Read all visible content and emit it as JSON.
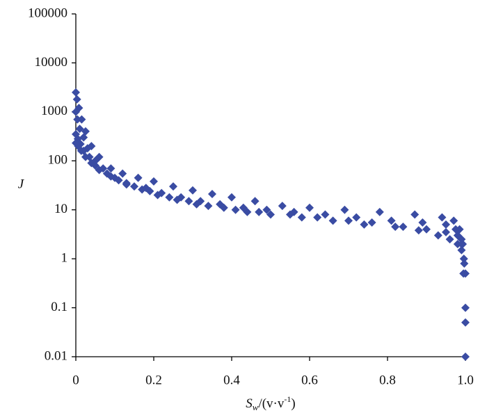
{
  "chart_data": {
    "type": "scatter",
    "x_label_parts": [
      "S",
      "w",
      "/(v·v",
      "-1",
      ")"
    ],
    "y_label": "J",
    "xlim": [
      0,
      1
    ],
    "xticks": [
      0,
      0.2,
      0.4,
      0.6,
      0.8,
      {
        "value": 1,
        "label": "1.0"
      }
    ],
    "ylim": [
      0.01,
      100000
    ],
    "yticks": [
      0.01,
      0.1,
      1,
      10,
      100,
      1000,
      10000,
      100000
    ],
    "log_y": true,
    "marker": "diamond",
    "series": [
      {
        "color": "#3a4ca3",
        "x": [
          0,
          0.003,
          0.008,
          0.015,
          0.025,
          0.04,
          0.06,
          0.09,
          0.12,
          0.16,
          0.2,
          0.25,
          0.3,
          0.35,
          0.4,
          0.46,
          0.53,
          0.6,
          0.69,
          0.78,
          0.87,
          0.94,
          0.97,
          0.985,
          0.993,
          1
        ],
        "values": [
          2500,
          1800,
          1200,
          700,
          400,
          200,
          120,
          70,
          55,
          45,
          38,
          30,
          25,
          21,
          18,
          15,
          12,
          11,
          10,
          9,
          8,
          7,
          6,
          4,
          2,
          0.5
        ]
      },
      {
        "color": "#3a4ca3",
        "x": [
          0,
          0.004,
          0.01,
          0.02,
          0.03,
          0.05,
          0.07,
          0.1,
          0.13,
          0.18,
          0.22,
          0.27,
          0.32,
          0.37,
          0.43,
          0.49,
          0.56,
          0.64,
          0.72,
          0.81,
          0.89,
          0.95,
          0.975,
          0.99,
          0.996,
          1
        ],
        "values": [
          1000,
          700,
          450,
          300,
          180,
          100,
          70,
          45,
          35,
          28,
          22,
          18,
          15,
          13,
          11,
          10,
          9,
          8,
          7,
          6,
          5.5,
          5,
          4,
          2.5,
          1,
          0.1
        ]
      },
      {
        "color": "#3a4ca3",
        "x": [
          0,
          0.005,
          0.012,
          0.02,
          0.035,
          0.05,
          0.08,
          0.11,
          0.15,
          0.19,
          0.24,
          0.29,
          0.34,
          0.41,
          0.47,
          0.55,
          0.62,
          0.7,
          0.76,
          0.84,
          0.9,
          0.95,
          0.98,
          0.99,
          0.997,
          1
        ],
        "values": [
          350,
          280,
          220,
          160,
          120,
          80,
          55,
          40,
          30,
          24,
          18,
          15,
          12,
          10,
          9,
          8,
          7,
          6,
          5.5,
          4.5,
          4,
          3.5,
          3,
          2,
          0.8,
          0.05
        ]
      },
      {
        "color": "#3a4ca3",
        "x": [
          0,
          0.006,
          0.014,
          0.025,
          0.04,
          0.06,
          0.09,
          0.13,
          0.17,
          0.21,
          0.26,
          0.31,
          0.38,
          0.44,
          0.5,
          0.58,
          0.66,
          0.74,
          0.82,
          0.88,
          0.93,
          0.96,
          0.98,
          0.99,
          0.995,
          1
        ],
        "values": [
          230,
          200,
          160,
          120,
          90,
          65,
          48,
          33,
          26,
          20,
          16,
          13,
          11,
          9,
          8,
          7,
          6,
          5,
          4.5,
          3.8,
          3,
          2.5,
          2,
          1.5,
          0.5,
          0.01
        ]
      }
    ]
  }
}
